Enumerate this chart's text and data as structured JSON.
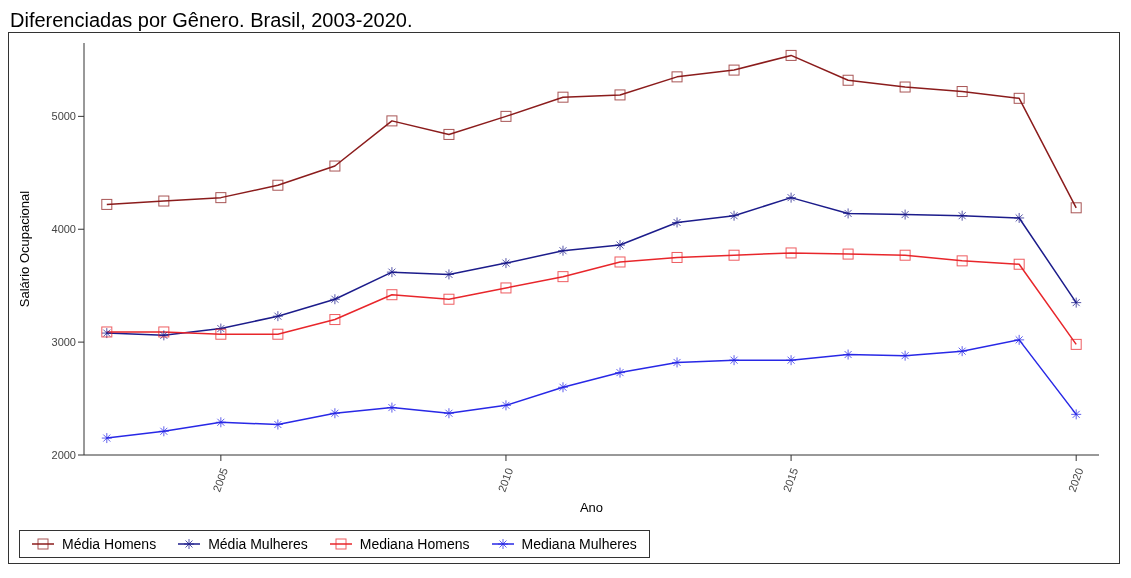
{
  "chart_data": {
    "type": "line",
    "title": "Diferenciadas por Gênero. Brasil, 2003-2020.",
    "xlabel": "Ano",
    "ylabel": "Salário Ocupacional",
    "x": [
      2003,
      2004,
      2005,
      2006,
      2007,
      2008,
      2009,
      2010,
      2011,
      2012,
      2013,
      2014,
      2015,
      2016,
      2017,
      2018,
      2019,
      2020
    ],
    "xlim": [
      2002.6,
      2020.4
    ],
    "xticks": [
      2005,
      2010,
      2015,
      2020
    ],
    "ylim": [
      2000,
      5650
    ],
    "yticks": [
      2000,
      3000,
      4000,
      5000
    ],
    "grid": false,
    "legend": "bottom",
    "line_style": "solid",
    "series": [
      {
        "name": "Média Homens",
        "color": "#8b1c1c",
        "marker": "square",
        "values": [
          4220,
          4250,
          4280,
          4390,
          4560,
          4960,
          4840,
          5000,
          5170,
          5190,
          5350,
          5410,
          5540,
          5320,
          5260,
          5220,
          5160,
          4190
        ]
      },
      {
        "name": "Média Mulheres",
        "color": "#1c1c8b",
        "marker": "cross",
        "values": [
          3080,
          3060,
          3120,
          3230,
          3380,
          3620,
          3600,
          3700,
          3810,
          3860,
          4060,
          4120,
          4280,
          4140,
          4130,
          4120,
          4100,
          3350
        ]
      },
      {
        "name": "Mediana Homens",
        "color": "#e8262b",
        "marker": "square",
        "values": [
          3090,
          3090,
          3070,
          3070,
          3200,
          3420,
          3380,
          3480,
          3580,
          3710,
          3750,
          3770,
          3790,
          3780,
          3770,
          3720,
          3690,
          2980
        ]
      },
      {
        "name": "Mediana Mulheres",
        "color": "#2828e6",
        "marker": "cross",
        "values": [
          2150,
          2210,
          2290,
          2270,
          2370,
          2420,
          2370,
          2440,
          2600,
          2730,
          2820,
          2840,
          2840,
          2890,
          2880,
          2920,
          3020,
          2360
        ]
      }
    ]
  }
}
